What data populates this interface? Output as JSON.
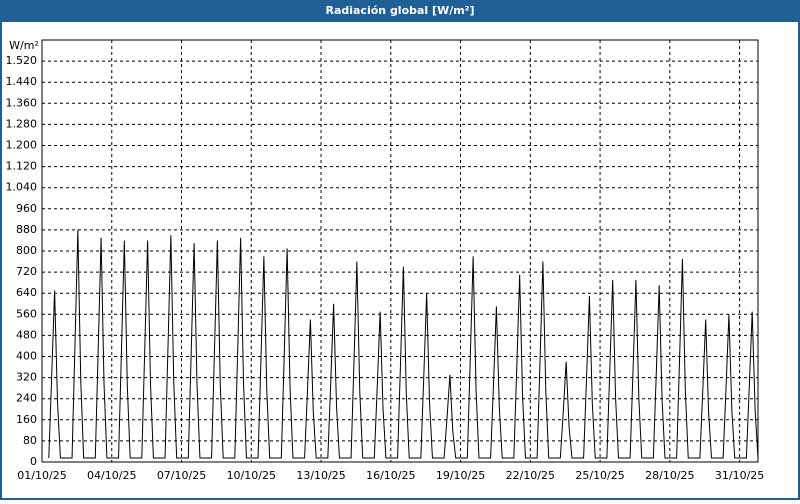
{
  "chart_data": {
    "type": "line",
    "title": "Radiación global [W/m²]",
    "y_label": "W/m²",
    "color": "#000000",
    "grid": true,
    "x": [
      "2025-10-01T07:00",
      "2025-10-01T10:00",
      "2025-10-01T13:00",
      "2025-10-01T16:00",
      "2025-10-01T19:00",
      "2025-10-02T07:00",
      "2025-10-02T10:00",
      "2025-10-02T13:00",
      "2025-10-02T16:00",
      "2025-10-02T19:00",
      "2025-10-03T07:00",
      "2025-10-03T10:00",
      "2025-10-03T13:00",
      "2025-10-03T16:00",
      "2025-10-03T19:00",
      "2025-10-04T07:00",
      "2025-10-04T10:00",
      "2025-10-04T13:00",
      "2025-10-04T16:00",
      "2025-10-04T19:00",
      "2025-10-05T07:00",
      "2025-10-05T10:00",
      "2025-10-05T13:00",
      "2025-10-05T16:00",
      "2025-10-05T19:00",
      "2025-10-06T07:00",
      "2025-10-06T10:00",
      "2025-10-06T13:00",
      "2025-10-06T16:00",
      "2025-10-06T19:00",
      "2025-10-07T07:00",
      "2025-10-07T10:00",
      "2025-10-07T13:00",
      "2025-10-07T16:00",
      "2025-10-07T19:00",
      "2025-10-08T07:00",
      "2025-10-08T10:00",
      "2025-10-08T13:00",
      "2025-10-08T16:00",
      "2025-10-08T19:00",
      "2025-10-09T07:00",
      "2025-10-09T10:00",
      "2025-10-09T13:00",
      "2025-10-09T16:00",
      "2025-10-09T19:00",
      "2025-10-10T07:00",
      "2025-10-10T10:00",
      "2025-10-10T13:00",
      "2025-10-10T16:00",
      "2025-10-10T19:00",
      "2025-10-11T07:00",
      "2025-10-11T10:00",
      "2025-10-11T13:00",
      "2025-10-11T16:00",
      "2025-10-11T19:00",
      "2025-10-12T07:00",
      "2025-10-12T10:00",
      "2025-10-12T13:00",
      "2025-10-12T16:00",
      "2025-10-12T19:00",
      "2025-10-13T07:00",
      "2025-10-13T10:00",
      "2025-10-13T13:00",
      "2025-10-13T16:00",
      "2025-10-13T19:00",
      "2025-10-14T07:00",
      "2025-10-14T10:00",
      "2025-10-14T13:00",
      "2025-10-14T16:00",
      "2025-10-14T19:00",
      "2025-10-15T07:00",
      "2025-10-15T10:00",
      "2025-10-15T13:00",
      "2025-10-15T16:00",
      "2025-10-15T19:00",
      "2025-10-16T07:00",
      "2025-10-16T10:00",
      "2025-10-16T13:00",
      "2025-10-16T16:00",
      "2025-10-16T19:00",
      "2025-10-17T07:00",
      "2025-10-17T10:00",
      "2025-10-17T13:00",
      "2025-10-17T16:00",
      "2025-10-17T19:00",
      "2025-10-18T07:00",
      "2025-10-18T10:00",
      "2025-10-18T13:00",
      "2025-10-18T16:00",
      "2025-10-18T19:00",
      "2025-10-19T07:00",
      "2025-10-19T10:00",
      "2025-10-19T13:00",
      "2025-10-19T16:00",
      "2025-10-19T19:00",
      "2025-10-20T07:00",
      "2025-10-20T10:00",
      "2025-10-20T13:00",
      "2025-10-20T16:00",
      "2025-10-20T19:00",
      "2025-10-21T07:00",
      "2025-10-21T10:00",
      "2025-10-21T13:00",
      "2025-10-21T16:00",
      "2025-10-21T19:00",
      "2025-10-22T07:00",
      "2025-10-22T10:00",
      "2025-10-22T13:00",
      "2025-10-22T16:00",
      "2025-10-22T19:00",
      "2025-10-23T07:00",
      "2025-10-23T10:00",
      "2025-10-23T13:00",
      "2025-10-23T16:00",
      "2025-10-23T19:00",
      "2025-10-24T07:00",
      "2025-10-24T10:00",
      "2025-10-24T13:00",
      "2025-10-24T16:00",
      "2025-10-24T19:00",
      "2025-10-25T07:00",
      "2025-10-25T10:00",
      "2025-10-25T13:00",
      "2025-10-25T16:00",
      "2025-10-25T19:00",
      "2025-10-26T07:00",
      "2025-10-26T10:00",
      "2025-10-26T13:00",
      "2025-10-26T16:00",
      "2025-10-26T19:00",
      "2025-10-27T07:00",
      "2025-10-27T10:00",
      "2025-10-27T13:00",
      "2025-10-27T16:00",
      "2025-10-27T19:00",
      "2025-10-28T07:00",
      "2025-10-28T10:00",
      "2025-10-28T13:00",
      "2025-10-28T16:00",
      "2025-10-28T19:00",
      "2025-10-29T07:00",
      "2025-10-29T10:00",
      "2025-10-29T13:00",
      "2025-10-29T16:00",
      "2025-10-29T19:00",
      "2025-10-30T07:00",
      "2025-10-30T10:00",
      "2025-10-30T13:00",
      "2025-10-30T16:00",
      "2025-10-30T19:00",
      "2025-10-31T07:00",
      "2025-10-31T10:00",
      "2025-10-31T13:00",
      "2025-10-31T16:00",
      "2025-10-31T19:00"
    ],
    "values": [
      15,
      325,
      650,
      228,
      15,
      15,
      440,
      880,
      308,
      15,
      15,
      425,
      850,
      298,
      15,
      15,
      420,
      840,
      294,
      15,
      15,
      420,
      840,
      294,
      15,
      15,
      430,
      860,
      301,
      15,
      15,
      415,
      830,
      291,
      15,
      15,
      420,
      840,
      294,
      15,
      15,
      425,
      850,
      298,
      15,
      15,
      390,
      780,
      273,
      15,
      15,
      405,
      810,
      284,
      15,
      15,
      270,
      540,
      189,
      15,
      15,
      300,
      600,
      210,
      15,
      15,
      380,
      760,
      266,
      15,
      15,
      285,
      570,
      200,
      15,
      15,
      370,
      740,
      259,
      15,
      15,
      320,
      640,
      224,
      15,
      15,
      165,
      330,
      116,
      15,
      15,
      390,
      780,
      273,
      15,
      15,
      295,
      590,
      207,
      15,
      15,
      355,
      710,
      249,
      15,
      15,
      380,
      760,
      266,
      15,
      15,
      190,
      380,
      133,
      15,
      15,
      315,
      630,
      221,
      15,
      15,
      345,
      690,
      242,
      15,
      15,
      345,
      690,
      242,
      15,
      15,
      335,
      670,
      235,
      15,
      15,
      385,
      770,
      270,
      15,
      15,
      270,
      540,
      189,
      15,
      15,
      280,
      560,
      196,
      15,
      15,
      285,
      570,
      200,
      15
    ],
    "xlim": [
      "2025-10-01T00:00",
      "2025-10-31T19:00"
    ],
    "xticks": [
      {
        "value": "2025-10-01T00:00",
        "label": "01/10/25"
      },
      {
        "value": "2025-10-04T00:00",
        "label": "04/10/25"
      },
      {
        "value": "2025-10-07T00:00",
        "label": "07/10/25"
      },
      {
        "value": "2025-10-10T00:00",
        "label": "10/10/25"
      },
      {
        "value": "2025-10-13T00:00",
        "label": "13/10/25"
      },
      {
        "value": "2025-10-16T00:00",
        "label": "16/10/25"
      },
      {
        "value": "2025-10-19T00:00",
        "label": "19/10/25"
      },
      {
        "value": "2025-10-22T00:00",
        "label": "22/10/25"
      },
      {
        "value": "2025-10-25T00:00",
        "label": "25/10/25"
      },
      {
        "value": "2025-10-28T00:00",
        "label": "28/10/25"
      },
      {
        "value": "2025-10-31T00:00",
        "label": "31/10/25"
      }
    ],
    "ylim": [
      0,
      1600
    ],
    "yticks": [
      0,
      80,
      160,
      240,
      320,
      400,
      480,
      560,
      640,
      720,
      800,
      880,
      960,
      {
        "value": 1040,
        "label": "1.040"
      },
      {
        "value": 1120,
        "label": "1.120"
      },
      {
        "value": 1200,
        "label": "1.200"
      },
      {
        "value": 1280,
        "label": "1.280"
      },
      {
        "value": 1360,
        "label": "1.360"
      },
      {
        "value": 1440,
        "label": "1.440"
      },
      {
        "value": 1520,
        "label": "1.520"
      }
    ]
  }
}
